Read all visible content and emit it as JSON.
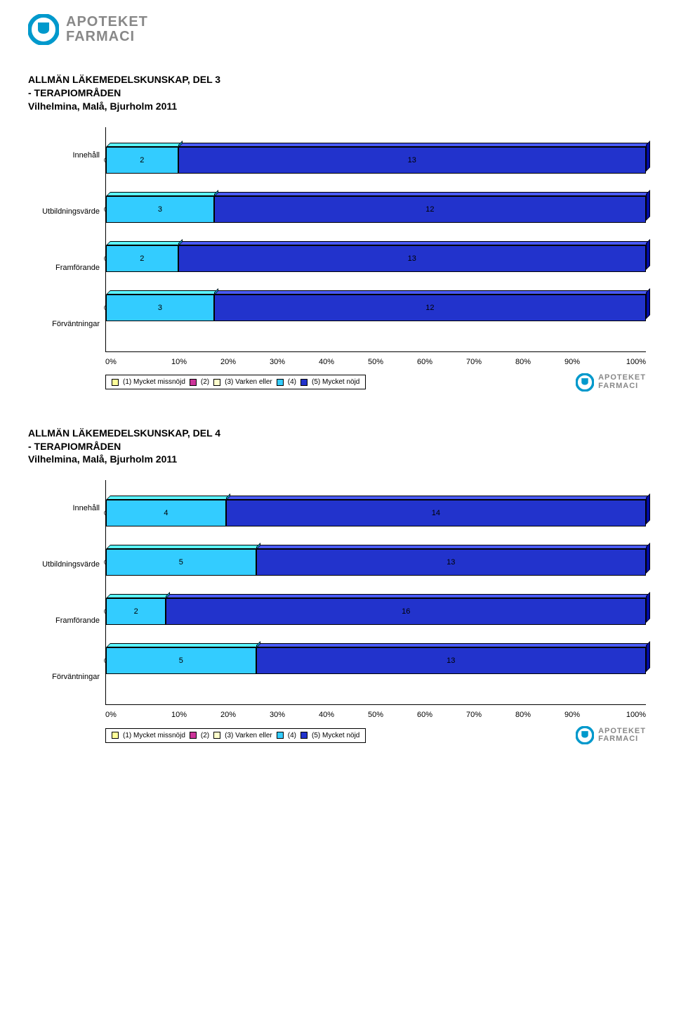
{
  "brand": {
    "line1": "APOTEKET",
    "line2": "FARMACI",
    "color": "#888888",
    "icon_color": "#0099cc"
  },
  "charts": [
    {
      "title_lines": [
        "ALLMÄN LÄKEMEDELSKUNSKAP, DEL 3",
        "- TERAPIOMRÅDEN",
        "Vilhelmina, Malå, Bjurholm 2011"
      ],
      "categories": [
        "Innehåll",
        "Utbildningsvärde",
        "Framförande",
        "Förväntningar"
      ],
      "series": [
        {
          "label": "(1) Mycket missnöjd",
          "color": "#ffff99"
        },
        {
          "label": "(2)",
          "color": "#cc3399"
        },
        {
          "label": "(3) Varken eller",
          "color": "#ffffcc"
        },
        {
          "label": "(4)",
          "color": "#33ccff"
        },
        {
          "label": "(5) Mycket nöjd",
          "color": "#2233cc"
        }
      ],
      "data": [
        [
          0,
          0,
          0,
          2,
          13
        ],
        [
          0,
          0,
          0,
          3,
          12
        ],
        [
          0,
          0,
          0,
          2,
          13
        ],
        [
          0,
          0,
          0,
          3,
          12
        ]
      ],
      "x_ticks": [
        "0%",
        "10%",
        "20%",
        "30%",
        "40%",
        "50%",
        "60%",
        "70%",
        "80%",
        "90%",
        "100%"
      ]
    },
    {
      "title_lines": [
        "ALLMÄN LÄKEMEDELSKUNSKAP, DEL 4",
        "- TERAPIOMRÅDEN",
        "Vilhelmina, Malå, Bjurholm 2011"
      ],
      "categories": [
        "Innehåll",
        "Utbildningsvärde",
        "Framförande",
        "Förväntningar"
      ],
      "series": [
        {
          "label": "(1) Mycket missnöjd",
          "color": "#ffff99"
        },
        {
          "label": "(2)",
          "color": "#cc3399"
        },
        {
          "label": "(3) Varken eller",
          "color": "#ffffcc"
        },
        {
          "label": "(4)",
          "color": "#33ccff"
        },
        {
          "label": "(5) Mycket nöjd",
          "color": "#2233cc"
        }
      ],
      "data": [
        [
          0,
          0,
          0,
          4,
          14
        ],
        [
          0,
          0,
          0,
          5,
          13
        ],
        [
          0,
          0,
          0,
          2,
          16
        ],
        [
          0,
          0,
          0,
          5,
          13
        ]
      ],
      "x_ticks": [
        "0%",
        "10%",
        "20%",
        "30%",
        "40%",
        "50%",
        "60%",
        "70%",
        "80%",
        "90%",
        "100%"
      ]
    }
  ]
}
